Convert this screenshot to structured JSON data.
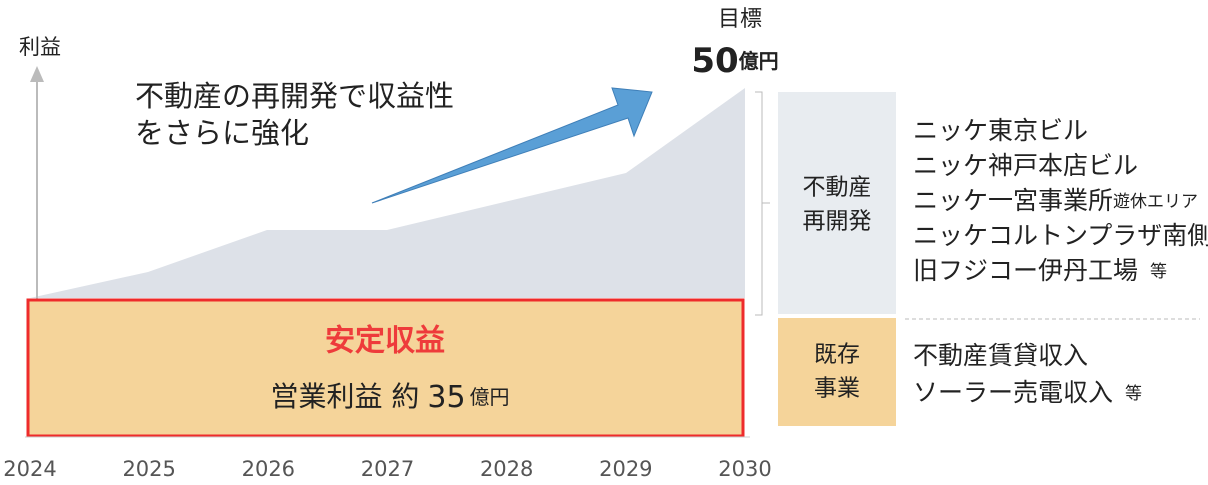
{
  "axis_label": "利益",
  "target": {
    "label": "目標",
    "value": "50",
    "unit": "億円"
  },
  "headline": [
    "不動産の再開発で収益性",
    "をさらに強化"
  ],
  "stable": {
    "title": "安定収益",
    "text": "営業利益 約",
    "value": "35",
    "unit": "億円"
  },
  "years": [
    2024,
    2025,
    2026,
    2027,
    2028,
    2029,
    2030
  ],
  "segments": [
    {
      "label": [
        "不動産",
        "再開発"
      ],
      "items": [
        {
          "text": "ニッケ東京ビル"
        },
        {
          "text": "ニッケ神戸本店ビル"
        },
        {
          "text": "ニッケ一宮事業所",
          "note": "遊休エリア"
        },
        {
          "text": "ニッケコルトンプラザ南側"
        },
        {
          "text": "旧フジコー伊丹工場",
          "note": "等"
        }
      ]
    },
    {
      "label": [
        "既存",
        "事業"
      ],
      "items": [
        {
          "text": "不動産賃貸収入"
        },
        {
          "text": "ソーラー売電収入",
          "note": "等"
        }
      ]
    }
  ]
}
